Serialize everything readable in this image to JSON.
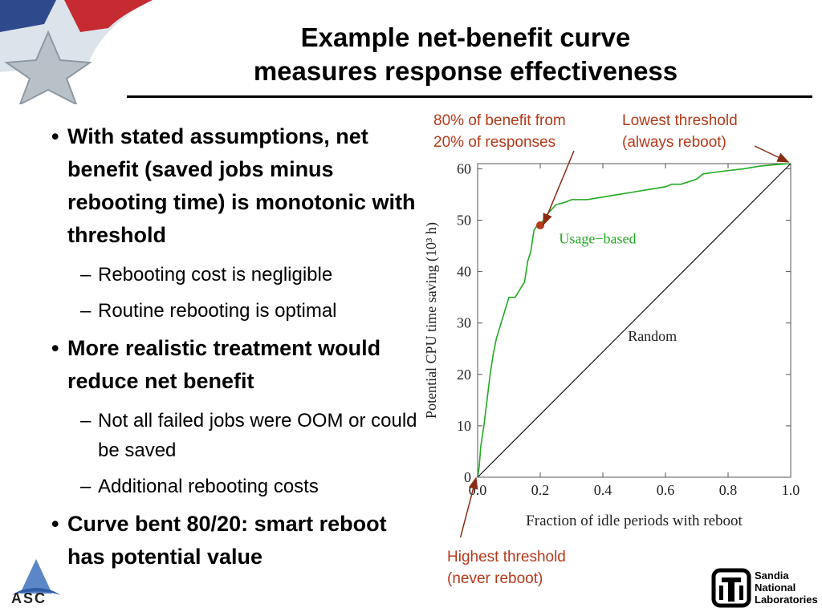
{
  "slide": {
    "title_line1": "Example net-benefit curve",
    "title_line2": "measures response effectiveness",
    "bullets": [
      {
        "text": "With stated assumptions, net benefit (saved jobs minus rebooting time) is monotonic with threshold",
        "subs": [
          "Rebooting cost is negligible",
          "Routine rebooting is optimal"
        ]
      },
      {
        "text": "More realistic treatment would reduce net benefit",
        "subs": [
          "Not all failed jobs were OOM or could be saved",
          "Additional rebooting costs"
        ]
      },
      {
        "text": "Curve bent 80/20: smart reboot has potential value",
        "subs": []
      }
    ],
    "annotations": {
      "pareto": [
        "80% of benefit from",
        "20% of responses"
      ],
      "lowest": [
        "Lowest threshold",
        "(always reboot)"
      ],
      "highest": [
        "Highest threshold",
        "(never reboot)"
      ]
    },
    "colors": {
      "annotation": "#b5391a",
      "curve": "#22aa22",
      "title_rule": "#000000"
    },
    "logos": {
      "left_corner": "star-flag-icon",
      "bottom_left": "asc-logo",
      "bottom_right": "sandia-logo"
    },
    "asc_label": "ASC",
    "sandia_label": [
      "Sandia",
      "National",
      "Laboratories"
    ]
  },
  "chart_data": {
    "type": "line",
    "xlabel": "Fraction of idle periods with reboot",
    "ylabel": "Potential CPU time saving (10³ h)",
    "xlim": [
      0,
      1
    ],
    "ylim": [
      0,
      61
    ],
    "xticks": [
      "0.0",
      "0.2",
      "0.4",
      "0.6",
      "0.8",
      "1.0"
    ],
    "yticks": [
      "0",
      "10",
      "20",
      "30",
      "40",
      "50",
      "60"
    ],
    "series": [
      {
        "name": "Usage−based",
        "x": [
          0,
          0.005,
          0.01,
          0.02,
          0.03,
          0.04,
          0.05,
          0.06,
          0.07,
          0.08,
          0.09,
          0.1,
          0.11,
          0.12,
          0.13,
          0.14,
          0.15,
          0.16,
          0.17,
          0.18,
          0.19,
          0.2,
          0.22,
          0.25,
          0.28,
          0.3,
          0.35,
          0.4,
          0.45,
          0.5,
          0.55,
          0.6,
          0.62,
          0.65,
          0.7,
          0.72,
          0.78,
          0.85,
          0.9,
          0.95,
          1.0
        ],
        "y": [
          0,
          2,
          6,
          10,
          15,
          20,
          24,
          27,
          29,
          31,
          33,
          35,
          35,
          35,
          36,
          37,
          38,
          42,
          44,
          48,
          49,
          49,
          51,
          53,
          53.5,
          54,
          54,
          54.5,
          55,
          55.5,
          56,
          56.5,
          57,
          57,
          58,
          59,
          59.5,
          60,
          60.5,
          60.8,
          61
        ]
      },
      {
        "name": "Random",
        "x": [
          0,
          1
        ],
        "y": [
          0,
          61
        ]
      }
    ],
    "markers": [
      {
        "x": 0.2,
        "y": 49
      }
    ],
    "grid": false,
    "legend": "inline labels"
  }
}
